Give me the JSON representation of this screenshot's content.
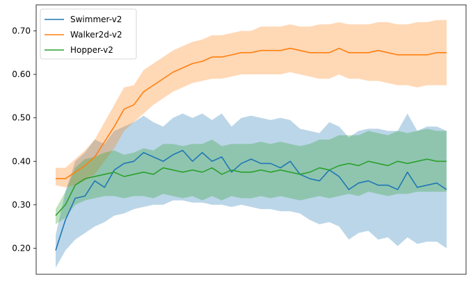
{
  "chart_data": {
    "type": "line",
    "title": "",
    "xlabel": "",
    "ylabel": "",
    "ylim": [
      0.14,
      0.76
    ],
    "yticks": [
      0.2,
      0.3,
      0.4,
      0.5,
      0.6,
      0.7
    ],
    "ytick_labels": [
      "0.20",
      "0.30",
      "0.40",
      "0.50",
      "0.60",
      "0.70"
    ],
    "x_ticks_visible": false,
    "grid": false,
    "legend_position": "upper-left",
    "x": [
      0,
      1,
      2,
      3,
      4,
      5,
      6,
      7,
      8,
      9,
      10,
      11,
      12,
      13,
      14,
      15,
      16,
      17,
      18,
      19,
      20,
      21,
      22,
      23,
      24,
      25,
      26,
      27,
      28,
      29,
      30,
      31,
      32,
      33,
      34,
      35,
      36,
      37,
      38,
      39,
      40
    ],
    "series": [
      {
        "name": "Swimmer-v2",
        "color": "#1f77b4",
        "mean": [
          0.195,
          0.265,
          0.315,
          0.32,
          0.355,
          0.34,
          0.38,
          0.395,
          0.4,
          0.42,
          0.41,
          0.4,
          0.415,
          0.425,
          0.4,
          0.42,
          0.4,
          0.41,
          0.375,
          0.395,
          0.405,
          0.395,
          0.395,
          0.385,
          0.4,
          0.37,
          0.36,
          0.355,
          0.38,
          0.365,
          0.335,
          0.35,
          0.355,
          0.345,
          0.345,
          0.335,
          0.375,
          0.34,
          0.345,
          0.35,
          0.335
        ],
        "lower": [
          0.155,
          0.195,
          0.22,
          0.235,
          0.25,
          0.26,
          0.275,
          0.28,
          0.29,
          0.295,
          0.3,
          0.3,
          0.31,
          0.31,
          0.305,
          0.305,
          0.3,
          0.3,
          0.295,
          0.3,
          0.295,
          0.29,
          0.29,
          0.285,
          0.285,
          0.28,
          0.265,
          0.255,
          0.26,
          0.25,
          0.22,
          0.235,
          0.24,
          0.22,
          0.225,
          0.205,
          0.225,
          0.21,
          0.215,
          0.215,
          0.2
        ],
        "upper": [
          0.23,
          0.33,
          0.4,
          0.42,
          0.45,
          0.44,
          0.47,
          0.48,
          0.49,
          0.505,
          0.49,
          0.48,
          0.5,
          0.51,
          0.5,
          0.51,
          0.495,
          0.51,
          0.48,
          0.5,
          0.505,
          0.5,
          0.495,
          0.5,
          0.495,
          0.475,
          0.47,
          0.465,
          0.49,
          0.48,
          0.455,
          0.47,
          0.475,
          0.475,
          0.47,
          0.47,
          0.51,
          0.47,
          0.48,
          0.48,
          0.47
        ]
      },
      {
        "name": "Walker2d-v2",
        "color": "#ff7f0e",
        "mean": [
          0.36,
          0.36,
          0.375,
          0.39,
          0.41,
          0.445,
          0.48,
          0.52,
          0.53,
          0.56,
          0.575,
          0.59,
          0.605,
          0.615,
          0.625,
          0.63,
          0.64,
          0.64,
          0.645,
          0.65,
          0.65,
          0.655,
          0.655,
          0.655,
          0.66,
          0.655,
          0.65,
          0.65,
          0.65,
          0.66,
          0.65,
          0.65,
          0.65,
          0.655,
          0.65,
          0.645,
          0.645,
          0.645,
          0.645,
          0.65,
          0.65
        ],
        "lower": [
          0.345,
          0.34,
          0.345,
          0.355,
          0.37,
          0.4,
          0.43,
          0.47,
          0.49,
          0.51,
          0.53,
          0.545,
          0.56,
          0.57,
          0.58,
          0.585,
          0.59,
          0.59,
          0.595,
          0.6,
          0.6,
          0.6,
          0.6,
          0.6,
          0.605,
          0.6,
          0.595,
          0.59,
          0.59,
          0.6,
          0.59,
          0.59,
          0.585,
          0.585,
          0.58,
          0.575,
          0.575,
          0.57,
          0.575,
          0.575,
          0.575
        ],
        "upper": [
          0.385,
          0.385,
          0.405,
          0.425,
          0.45,
          0.49,
          0.53,
          0.57,
          0.575,
          0.61,
          0.625,
          0.64,
          0.655,
          0.665,
          0.675,
          0.68,
          0.69,
          0.69,
          0.695,
          0.7,
          0.7,
          0.71,
          0.71,
          0.71,
          0.715,
          0.71,
          0.71,
          0.715,
          0.715,
          0.72,
          0.715,
          0.715,
          0.715,
          0.72,
          0.72,
          0.715,
          0.715,
          0.72,
          0.72,
          0.725,
          0.725
        ]
      },
      {
        "name": "Hopper-v2",
        "color": "#2ca02c",
        "mean": [
          0.275,
          0.3,
          0.345,
          0.36,
          0.365,
          0.37,
          0.375,
          0.365,
          0.37,
          0.375,
          0.37,
          0.385,
          0.38,
          0.375,
          0.38,
          0.375,
          0.385,
          0.37,
          0.38,
          0.375,
          0.375,
          0.38,
          0.375,
          0.38,
          0.375,
          0.37,
          0.375,
          0.385,
          0.38,
          0.39,
          0.395,
          0.39,
          0.4,
          0.395,
          0.39,
          0.4,
          0.395,
          0.4,
          0.405,
          0.4,
          0.4
        ],
        "lower": [
          0.255,
          0.27,
          0.3,
          0.31,
          0.315,
          0.32,
          0.32,
          0.315,
          0.32,
          0.32,
          0.315,
          0.325,
          0.32,
          0.315,
          0.32,
          0.31,
          0.32,
          0.31,
          0.32,
          0.315,
          0.315,
          0.32,
          0.315,
          0.32,
          0.315,
          0.31,
          0.315,
          0.32,
          0.315,
          0.32,
          0.325,
          0.32,
          0.33,
          0.325,
          0.32,
          0.325,
          0.325,
          0.33,
          0.33,
          0.33,
          0.33
        ],
        "upper": [
          0.29,
          0.33,
          0.385,
          0.405,
          0.41,
          0.42,
          0.425,
          0.415,
          0.42,
          0.43,
          0.425,
          0.44,
          0.44,
          0.435,
          0.44,
          0.44,
          0.45,
          0.435,
          0.44,
          0.44,
          0.44,
          0.445,
          0.44,
          0.445,
          0.44,
          0.435,
          0.44,
          0.45,
          0.45,
          0.46,
          0.46,
          0.46,
          0.47,
          0.465,
          0.46,
          0.47,
          0.465,
          0.47,
          0.475,
          0.47,
          0.47
        ]
      }
    ]
  }
}
